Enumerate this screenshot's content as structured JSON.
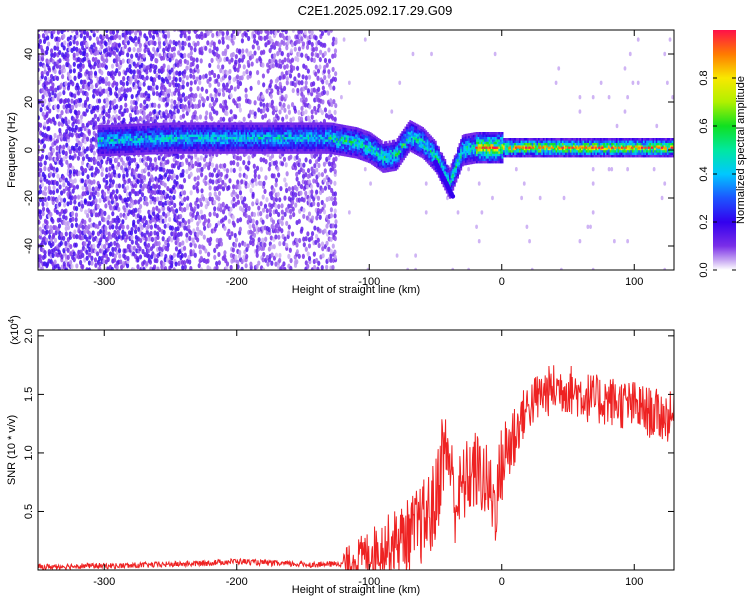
{
  "title": "C2E1.2025.092.17.29.G09",
  "chart_data": [
    {
      "type": "heatmap",
      "title": "C2E1.2025.092.17.29.G09",
      "xlabel": "Height of straight line (km)",
      "ylabel": "Frequency (Hz)",
      "xlim": [
        -350,
        130
      ],
      "ylim": [
        -50,
        50
      ],
      "x_ticks": [
        -300,
        -200,
        -100,
        0,
        100
      ],
      "y_ticks": [
        -40,
        -20,
        0,
        20,
        40
      ],
      "x_tick_labels": [
        "-300",
        "-200",
        "-100",
        "0",
        "100"
      ],
      "y_tick_labels": [
        "-40",
        "-20",
        "0",
        "20",
        "40"
      ],
      "colorbar": {
        "label": "Normalized spectral amplitude",
        "range": [
          0.0,
          1.0
        ],
        "ticks": [
          0.0,
          0.2,
          0.4,
          0.6,
          0.8
        ],
        "tick_labels": [
          "0.0",
          "0.2",
          "0.4",
          "0.6",
          "0.8"
        ]
      },
      "ridge_center_hz": [
        {
          "x": -300,
          "y": 4
        },
        {
          "x": -250,
          "y": 5
        },
        {
          "x": -200,
          "y": 5
        },
        {
          "x": -150,
          "y": 5
        },
        {
          "x": -130,
          "y": 5
        },
        {
          "x": -110,
          "y": 3
        },
        {
          "x": -100,
          "y": 1
        },
        {
          "x": -90,
          "y": -3
        },
        {
          "x": -80,
          "y": -2
        },
        {
          "x": -70,
          "y": 6
        },
        {
          "x": -60,
          "y": 3
        },
        {
          "x": -50,
          "y": -3
        },
        {
          "x": -40,
          "y": -14
        },
        {
          "x": -30,
          "y": 0
        },
        {
          "x": -20,
          "y": 1
        },
        {
          "x": 0,
          "y": 1
        },
        {
          "x": 50,
          "y": 1
        },
        {
          "x": 100,
          "y": 1
        },
        {
          "x": 130,
          "y": 1
        }
      ]
    },
    {
      "type": "line",
      "xlabel": "Height of straight line (km)",
      "ylabel": "SNR (10 * v/v)",
      "y_multiplier": "(x10",
      "y_multiplier_exp": "4",
      "xlim": [
        -350,
        130
      ],
      "ylim": [
        0,
        2.05
      ],
      "x_ticks": [
        -300,
        -200,
        -100,
        0,
        100
      ],
      "y_ticks": [
        0.5,
        1.0,
        1.5,
        2.0
      ],
      "x_tick_labels": [
        "-300",
        "-200",
        "-100",
        "0",
        "100"
      ],
      "y_tick_labels": [
        "0.5",
        "1.0",
        "1.5",
        "2.0"
      ],
      "color": "#ee2222",
      "series": [
        {
          "x": [
            -350,
            -320,
            -290,
            -260,
            -230,
            -200,
            -170,
            -140,
            -120,
            -110,
            -100,
            -90,
            -80,
            -70,
            -60,
            -50,
            -45,
            -40,
            -35,
            -30,
            -25,
            -20,
            -15,
            -10,
            -5,
            0,
            5,
            10,
            15,
            20,
            30,
            40,
            50,
            60,
            70,
            80,
            90,
            100,
            110,
            120,
            130
          ],
          "y": [
            0.02,
            0.03,
            0.03,
            0.04,
            0.05,
            0.07,
            0.05,
            0.04,
            0.05,
            0.1,
            0.15,
            0.2,
            0.25,
            0.3,
            0.4,
            0.55,
            1.0,
            1.0,
            0.55,
            0.7,
            0.8,
            0.85,
            0.8,
            0.7,
            0.55,
            0.9,
            1.05,
            1.15,
            1.3,
            1.4,
            1.5,
            1.55,
            1.55,
            1.5,
            1.45,
            1.45,
            1.42,
            1.4,
            1.35,
            1.32,
            1.3
          ]
        }
      ]
    }
  ]
}
